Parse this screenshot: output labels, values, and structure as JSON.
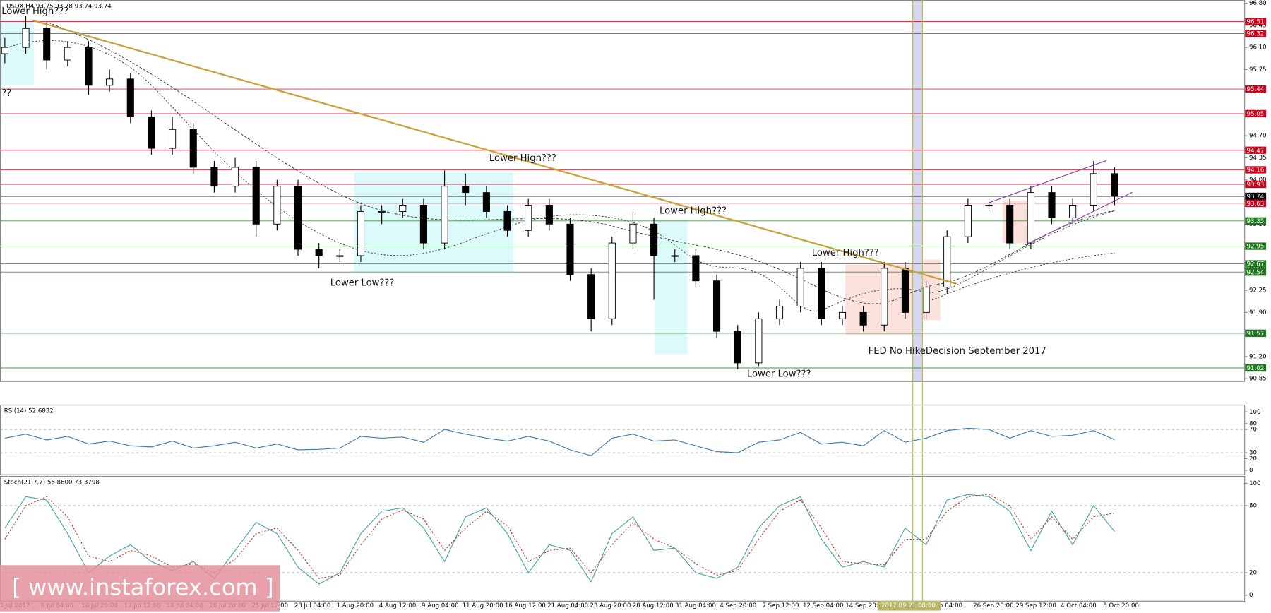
{
  "header": "USDX,H4 93.75 93.78 93.74 93.74",
  "watermark": "[ www.instaforex.com ]",
  "chart_data": [
    {
      "type": "candlestick",
      "x_labels": [
        "3 Jul 2017",
        "6 Jul 04:00",
        "10 Jul 20:00",
        "13 Jul 12:00",
        "18 Jul 04:00",
        "20 Jul 20:00",
        "25 Jul 12:00",
        "28 Jul 04:00",
        "1 Aug 20:00",
        "4 Aug 12:00",
        "9 Aug 04:00",
        "11 Aug 20:00",
        "16 Aug 12:00",
        "21 Aug 04:00",
        "23 Aug 20:00",
        "28 Aug 12:00",
        "31 Aug 04:00",
        "4 Sep 20:00",
        "7 Sep 12:00",
        "12 Sep 04:00",
        "14 Sep 20:00",
        "2017.09.21 08:00",
        "p 04:00",
        "26 Sep 20:00",
        "29 Sep 12:00",
        "4 Oct 04:00",
        "6 Oct 20:00"
      ],
      "highlight_label": 21,
      "open": [
        96.0,
        96.1,
        96.4,
        95.9,
        96.1,
        95.5,
        95.6,
        95.0,
        94.5,
        94.8,
        94.2,
        93.9,
        94.2,
        93.3,
        93.9,
        92.9,
        92.8,
        92.8,
        93.5,
        93.5,
        93.6,
        93.0,
        93.9,
        93.8,
        93.5,
        93.2,
        93.6,
        93.3,
        92.5,
        91.8,
        93.0,
        93.3,
        92.8,
        92.8,
        92.4,
        91.6,
        91.1,
        91.8,
        92.0,
        92.6,
        91.8,
        91.9,
        91.7,
        92.6,
        91.9,
        92.3,
        93.1,
        93.6,
        93.6,
        93.0,
        93.8,
        93.4,
        93.6,
        94.1
      ],
      "high": [
        96.25,
        96.6,
        96.5,
        96.2,
        96.2,
        95.75,
        95.7,
        95.1,
        95.0,
        94.9,
        94.3,
        94.35,
        94.3,
        94.0,
        94.0,
        93.0,
        92.9,
        93.6,
        93.6,
        93.7,
        93.7,
        94.15,
        94.1,
        93.9,
        93.6,
        93.7,
        93.7,
        93.4,
        92.6,
        93.1,
        93.5,
        93.4,
        92.9,
        92.9,
        92.5,
        91.7,
        91.9,
        92.1,
        92.7,
        92.7,
        92.0,
        92.0,
        92.7,
        92.7,
        92.4,
        93.2,
        93.7,
        93.7,
        93.7,
        93.9,
        93.9,
        93.7,
        94.3,
        94.2
      ],
      "low": [
        95.85,
        96.0,
        95.75,
        95.8,
        95.35,
        95.4,
        94.9,
        94.4,
        94.4,
        94.1,
        93.8,
        93.8,
        93.1,
        93.2,
        92.8,
        92.6,
        92.7,
        92.7,
        93.3,
        93.4,
        92.9,
        92.9,
        93.6,
        93.4,
        93.1,
        93.1,
        93.2,
        92.4,
        91.6,
        91.7,
        92.9,
        92.1,
        92.7,
        92.3,
        91.5,
        91.0,
        91.05,
        91.7,
        91.9,
        91.7,
        91.7,
        91.6,
        91.6,
        91.8,
        91.8,
        92.2,
        93.0,
        93.5,
        92.9,
        92.9,
        93.3,
        93.3,
        93.5,
        93.6
      ],
      "close": [
        96.1,
        96.4,
        95.9,
        96.1,
        95.5,
        95.6,
        95.0,
        94.5,
        94.8,
        94.2,
        93.9,
        94.2,
        93.3,
        93.9,
        92.9,
        92.8,
        92.8,
        93.5,
        93.5,
        93.6,
        93.0,
        93.9,
        93.8,
        93.5,
        93.2,
        93.6,
        93.3,
        92.5,
        91.8,
        93.0,
        93.3,
        92.8,
        92.8,
        92.4,
        91.6,
        91.1,
        91.8,
        92.0,
        92.6,
        91.8,
        91.9,
        91.7,
        92.6,
        91.9,
        92.3,
        93.1,
        93.6,
        93.6,
        93.0,
        93.8,
        93.4,
        93.6,
        94.1,
        93.74
      ],
      "ylim": [
        90.85,
        96.8
      ],
      "yticks": [
        {
          "value": 96.8,
          "label": "96.80"
        },
        96.45,
        {
          "value": 96.1,
          "label": "96.10"
        },
        95.75,
        {
          "value": 95.4,
          "label": "95.40"
        },
        {
          "value": 94.7,
          "label": "94.70"
        },
        94.35,
        {
          "value": 94.0,
          "label": "94.00"
        },
        {
          "value": 93.3,
          "label": "93.30"
        },
        {
          "value": 92.6,
          "label": "92.60"
        },
        92.25,
        {
          "value": 91.9,
          "label": "91.90"
        },
        {
          "value": 91.2,
          "label": "91.20"
        },
        90.85
      ],
      "levels": [
        {
          "value": 96.51,
          "color": "#d0021b"
        },
        {
          "value": 96.32,
          "color": "#d0021b"
        },
        {
          "value": 95.44,
          "color": "#d0021b"
        },
        {
          "value": 95.05,
          "color": "#d0021b"
        },
        {
          "value": 94.47,
          "color": "#d0021b"
        },
        {
          "value": 94.16,
          "color": "#d0021b"
        },
        {
          "value": 93.93,
          "color": "#d0021b"
        },
        {
          "value": 93.74,
          "color": "#000000"
        },
        {
          "value": 93.63,
          "color": "#d0021b"
        },
        {
          "value": 93.35,
          "color": "#1f7a1f"
        },
        {
          "value": 92.95,
          "color": "#1f7a1f"
        },
        {
          "value": 92.67,
          "color": "#1f7a1f"
        },
        {
          "value": 92.54,
          "color": "#1f7a1f"
        },
        {
          "value": 91.57,
          "color": "#1f7a1f"
        },
        {
          "value": 91.02,
          "color": "#1f7a1f"
        }
      ],
      "annotations": [
        "Lower High???",
        "??",
        "Lower High???",
        "Lower High???",
        "Lower High???",
        "Lower Low???",
        "Lower Low???",
        "FED No HikeDecision September 2017"
      ]
    },
    {
      "type": "line",
      "title": "RSI(14) 52.6832",
      "ylim": [
        0,
        100
      ],
      "yticks": [
        100,
        80,
        70,
        30,
        20,
        0
      ],
      "levels": [
        70,
        30
      ],
      "series": [
        {
          "color": "#3c7fb1",
          "values": [
            55,
            62,
            52,
            58,
            45,
            50,
            42,
            40,
            50,
            38,
            42,
            48,
            38,
            45,
            35,
            36,
            38,
            58,
            55,
            57,
            48,
            70,
            62,
            55,
            50,
            58,
            50,
            35,
            25,
            55,
            62,
            50,
            52,
            42,
            32,
            30,
            48,
            52,
            65,
            45,
            48,
            42,
            68,
            48,
            55,
            68,
            72,
            70,
            55,
            68,
            58,
            60,
            68,
            52.6832
          ]
        }
      ]
    },
    {
      "type": "line",
      "title": "Stoch(21,7,7) 56.8600 73.3798",
      "ylim": [
        0,
        100
      ],
      "yticks": [
        100,
        80,
        20,
        0
      ],
      "levels": [
        80,
        20
      ],
      "series": [
        {
          "color": "#4aa3a8",
          "values": [
            60,
            88,
            85,
            55,
            20,
            35,
            45,
            30,
            22,
            30,
            15,
            40,
            65,
            55,
            25,
            10,
            20,
            55,
            75,
            78,
            60,
            30,
            70,
            78,
            55,
            20,
            45,
            40,
            12,
            55,
            70,
            40,
            42,
            20,
            15,
            25,
            60,
            80,
            88,
            50,
            25,
            30,
            25,
            60,
            45,
            85,
            90,
            88,
            75,
            40,
            75,
            45,
            80,
            56.86
          ]
        },
        {
          "color": "#c0392b",
          "dashed": true,
          "values": [
            50,
            80,
            88,
            70,
            35,
            30,
            40,
            35,
            25,
            28,
            20,
            32,
            55,
            60,
            40,
            15,
            18,
            45,
            68,
            76,
            68,
            40,
            60,
            75,
            62,
            30,
            40,
            42,
            20,
            45,
            65,
            50,
            42,
            28,
            18,
            22,
            50,
            75,
            85,
            60,
            30,
            28,
            27,
            50,
            50,
            75,
            88,
            90,
            80,
            50,
            70,
            50,
            70,
            73.38
          ]
        }
      ]
    }
  ]
}
